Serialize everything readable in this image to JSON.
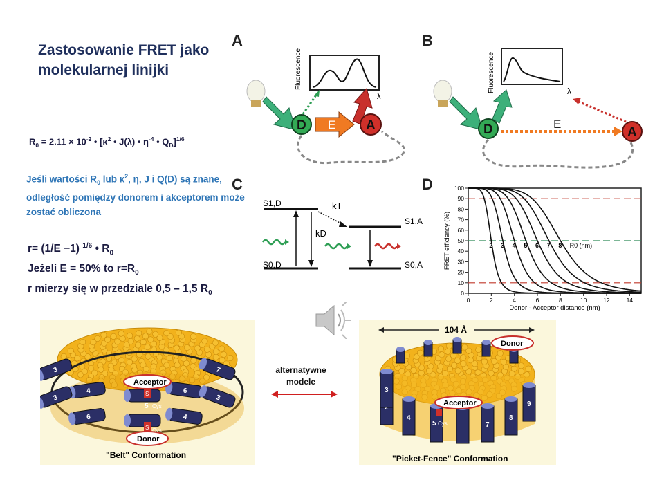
{
  "title": "Zastosowanie FRET jako molekularnej linijki",
  "r0_formula": {
    "prefix": "R",
    "sub0": "0",
    "eq": " = 2.11 × 10",
    "exp": "-2",
    "mid": " • [κ",
    "k_exp": "2",
    "rest": " • J(λ) • η",
    "eta_exp": "-4",
    "q": " • Q",
    "q_sub": "D",
    "end": "]",
    "end_exp": "1/6"
  },
  "blue_note": {
    "part1": "Jeśli wartości R",
    "sub": "0",
    "part2": " lub κ",
    "sup": "2",
    "part3": ", η, J i Q(D) są znane, odległość pomiędzy donorem i akceptorem może zostać obliczona"
  },
  "equations": {
    "line1_a": "r= (1/E −1) ",
    "line1_sup": "1/6",
    "line1_b": " • R",
    "line1_sub": "0",
    "line2_a": "Jeżeli E = 50% to r=R",
    "line2_sub": "0",
    "line3_a": "r mierzy się w przedziale 0,5 – 1,5 R",
    "line3_sub": "0"
  },
  "panels": {
    "A": "A",
    "B": "B",
    "C": "C",
    "D": "D",
    "fluorescence": "Fluorescence",
    "lambda": "λ",
    "donor": "D",
    "energy": "E",
    "acceptor": "A",
    "s1d": "S1,D",
    "s0d": "S0,D",
    "s1a": "S1,A",
    "s0a": "S0,A",
    "kt": "kT",
    "kd": "kD"
  },
  "chart_data": {
    "type": "line",
    "xlabel": "Donor - Acceptor distance (nm)",
    "ylabel": "FRET efficiency (%)",
    "xlim": [
      0,
      15
    ],
    "ylim": [
      0,
      100
    ],
    "xticks": [
      0,
      2,
      4,
      6,
      8,
      10,
      12,
      14
    ],
    "yticks": [
      0,
      10,
      20,
      30,
      40,
      50,
      60,
      70,
      80,
      90,
      100
    ],
    "r0_values": [
      2,
      3,
      4,
      5,
      6,
      7,
      8
    ],
    "r0_label": "R0 (nm)",
    "reference_lines": [
      {
        "y": 90,
        "color": "#c0392b"
      },
      {
        "y": 50,
        "color": "#2e8b57"
      },
      {
        "y": 10,
        "color": "#c0392b"
      }
    ]
  },
  "belt": {
    "caption": "\"Belt\" Conformation",
    "acceptor": "Acceptor",
    "donor": "Donor",
    "cys": "Cys",
    "s": "S"
  },
  "picket": {
    "caption": "\"Picket-Fence\" Conformation",
    "acceptor": "Acceptor",
    "donor": "Donor",
    "dimension": "104 Å",
    "cys": "Cys"
  },
  "alternative_label": "alternatywne modele"
}
